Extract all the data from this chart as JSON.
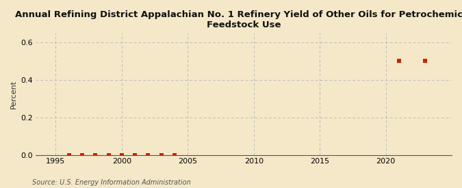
{
  "title": "Annual Refining District Appalachian No. 1 Refinery Yield of Other Oils for Petrochemical\nFeedstock Use",
  "ylabel": "Percent",
  "source": "Source: U.S. Energy Information Administration",
  "background_color": "#f5e8c8",
  "plot_background_color": "#f5e8c8",
  "xlim": [
    1993.5,
    2025
  ],
  "ylim": [
    0.0,
    0.65
  ],
  "yticks": [
    0.0,
    0.2,
    0.4,
    0.6
  ],
  "xticks": [
    1995,
    2000,
    2005,
    2010,
    2015,
    2020
  ],
  "marker_color": "#cc2200",
  "marker_size": 4,
  "grid_color": "#bbbbbb",
  "data_x": [
    1996,
    1997,
    1998,
    1999,
    2000,
    2001,
    2002,
    2003,
    2004,
    2021,
    2023
  ],
  "data_y": [
    0.0,
    0.0,
    0.0,
    0.0,
    0.0,
    0.0,
    0.0,
    0.0,
    0.0,
    0.5,
    0.5
  ]
}
